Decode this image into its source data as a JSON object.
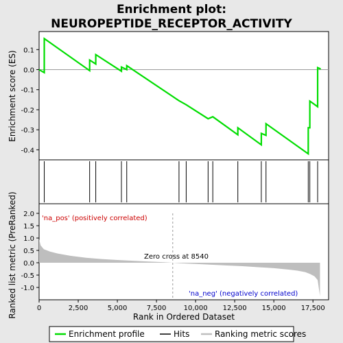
{
  "chart_data": {
    "type": "line",
    "title": "Enrichment plot:\nNEUROPEPTIDE_RECEPTOR_ACTIVITY",
    "colors": {
      "enrichment_line": "#00dd00",
      "hits": "#000000",
      "metric_fill": "#bebebe",
      "positive_band": "#ee3333",
      "negative_band": "#3333dd",
      "background": "#e8e8e8"
    },
    "top_panel": {
      "ylabel": "Enrichment score (ES)",
      "ylim": [
        -0.45,
        0.19
      ],
      "yticks": [
        0.1,
        0.0,
        -0.1,
        -0.2,
        -0.3,
        -0.4
      ],
      "ytick_labels": [
        "0.1",
        "0.0",
        "-0.1",
        "-0.2",
        "-0.3",
        "-0.4"
      ],
      "zero_line": true,
      "series": [
        {
          "name": "Enrichment profile",
          "x": [
            0,
            330,
            331,
            3230,
            3231,
            3620,
            3621,
            5260,
            5261,
            5600,
            5601,
            8940,
            9400,
            10800,
            11100,
            12700,
            12701,
            14200,
            14201,
            14500,
            14501,
            17200,
            17201,
            17300,
            17301,
            17800,
            17801,
            18000
          ],
          "y": [
            0.0,
            -0.015,
            0.155,
            -0.005,
            0.048,
            0.028,
            0.075,
            -0.008,
            0.013,
            0.0,
            0.02,
            -0.155,
            -0.175,
            -0.245,
            -0.235,
            -0.325,
            -0.29,
            -0.375,
            -0.318,
            -0.328,
            -0.27,
            -0.42,
            -0.29,
            -0.29,
            -0.157,
            -0.185,
            0.01,
            0.003
          ]
        }
      ]
    },
    "hits_panel": {
      "hit_positions": [
        330,
        3230,
        3620,
        5260,
        5600,
        8940,
        9400,
        10800,
        11100,
        12700,
        14200,
        14500,
        17200,
        17300,
        17800
      ]
    },
    "bottom_panel": {
      "ylabel": "Ranked list metric (PreRanked)",
      "xlabel": "Rank in Ordered Dataset",
      "ylim": [
        -1.5,
        2.0
      ],
      "yticks": [
        2.0,
        1.5,
        1.0,
        0.5,
        0.0,
        -0.5,
        -1.0
      ],
      "ytick_labels": [
        "2.0",
        "1.5",
        "1.0",
        "0.5",
        "0.0",
        "-0.5",
        "-1.0"
      ],
      "xlim": [
        0,
        18500
      ],
      "xticks": [
        0,
        2500,
        5000,
        7500,
        10000,
        12500,
        15000,
        17500
      ],
      "xtick_labels": [
        "0",
        "2,500",
        "5,000",
        "7,500",
        "10,000",
        "12,500",
        "15,000",
        "17,500"
      ],
      "metric_curve": {
        "x": [
          0,
          100,
          300,
          700,
          1200,
          2000,
          3000,
          4000,
          5000,
          6000,
          7000,
          8000,
          8540,
          9000,
          10000,
          11000,
          12000,
          13000,
          14000,
          15000,
          16000,
          16500,
          17000,
          17300,
          17600,
          17800,
          17950
        ],
        "y": [
          0.95,
          0.7,
          0.55,
          0.45,
          0.37,
          0.28,
          0.2,
          0.15,
          0.11,
          0.08,
          0.05,
          0.02,
          0.0,
          -0.02,
          -0.05,
          -0.08,
          -0.11,
          -0.14,
          -0.18,
          -0.22,
          -0.28,
          -0.32,
          -0.38,
          -0.45,
          -0.55,
          -0.7,
          -1.35
        ]
      },
      "zero_cross_rank": 8540,
      "annotations": {
        "pos_label": "'na_pos' (positively correlated)",
        "neg_label": "'na_neg' (negatively correlated)",
        "zero_cross": "Zero cross at 8540"
      }
    },
    "legend": {
      "placement": "bottom",
      "items": [
        "Enrichment profile",
        "Hits",
        "Ranking metric scores"
      ]
    }
  }
}
